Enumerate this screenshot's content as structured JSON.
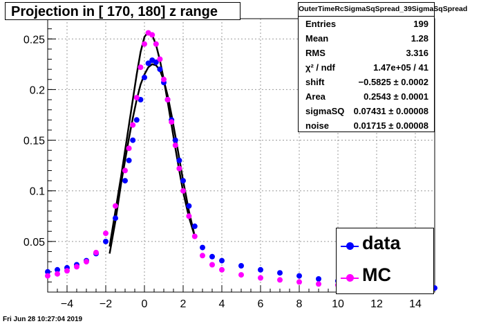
{
  "title": "Projection in [ 170, 180] z range",
  "stats": {
    "header": "OuterTimeRcSigmaSqSpread_39SigmaSqSpread",
    "rows": [
      {
        "label": "Entries",
        "value": "199"
      },
      {
        "label": "Mean",
        "value": "1.28"
      },
      {
        "label": "RMS",
        "value": "3.316"
      },
      {
        "label": "χ² / ndf",
        "value": "1.47e+05 / 41"
      },
      {
        "label": "shift",
        "value": "−0.5825 ± 0.0002"
      },
      {
        "label": "Area",
        "value": "0.2543 ± 0.0001"
      },
      {
        "label": "sigmaSQ",
        "value": "0.07431 ± 0.00008"
      },
      {
        "label": "noise",
        "value": "0.01715 ± 0.00008"
      }
    ]
  },
  "legend": [
    {
      "label": "data",
      "color": "#0000ff"
    },
    {
      "label": "MC",
      "color": "#ff00ff"
    }
  ],
  "footer": "Fri Jun 28 10:27:04 2019",
  "chart_data": {
    "type": "scatter",
    "xlim": [
      -5,
      15
    ],
    "ylim": [
      0,
      0.27
    ],
    "grid": true,
    "xticks": [
      -4,
      -2,
      0,
      2,
      4,
      6,
      8,
      10,
      12,
      14
    ],
    "yticks": [
      0.05,
      0.1,
      0.15,
      0.2,
      0.25
    ],
    "xticklabels": [
      "−4",
      "−2",
      "0",
      "2",
      "4",
      "6",
      "8",
      "10",
      "12",
      "14"
    ],
    "yticklabels": [
      "0.05",
      "0.1",
      "0.15",
      "0.2",
      "0.25"
    ],
    "series": [
      {
        "name": "data",
        "color": "#0000ff",
        "x": [
          -5.0,
          -4.5,
          -4.0,
          -3.5,
          -3.0,
          -2.5,
          -2.0,
          -1.5,
          -1.0,
          -0.8,
          -0.6,
          -0.4,
          -0.2,
          0.0,
          0.2,
          0.4,
          0.6,
          0.8,
          1.0,
          1.2,
          1.4,
          1.6,
          1.8,
          2.0,
          2.3,
          2.6,
          3.0,
          3.5,
          4.0,
          5.0,
          6.0,
          7.0,
          8.0,
          9.0,
          10.0,
          11.0,
          12.0,
          13.0,
          14.0,
          15.0
        ],
        "y": [
          0.02,
          0.022,
          0.024,
          0.027,
          0.031,
          0.038,
          0.05,
          0.073,
          0.11,
          0.13,
          0.15,
          0.17,
          0.19,
          0.212,
          0.226,
          0.229,
          0.227,
          0.22,
          0.207,
          0.19,
          0.17,
          0.15,
          0.13,
          0.11,
          0.085,
          0.065,
          0.044,
          0.035,
          0.031,
          0.026,
          0.022,
          0.019,
          0.016,
          0.013,
          0.011,
          0.009,
          0.007,
          0.006,
          0.005,
          0.004
        ]
      },
      {
        "name": "MC",
        "color": "#ff00ff",
        "x": [
          -5.0,
          -4.5,
          -4.0,
          -3.5,
          -3.0,
          -2.5,
          -2.0,
          -1.5,
          -1.0,
          -0.8,
          -0.6,
          -0.4,
          -0.2,
          0.0,
          0.2,
          0.4,
          0.6,
          0.8,
          1.0,
          1.2,
          1.4,
          1.6,
          1.8,
          2.0,
          2.3,
          2.6,
          3.0,
          3.5,
          4.0,
          5.0,
          6.0,
          7.0,
          8.0,
          9.0,
          10.0,
          10.5
        ],
        "y": [
          0.016,
          0.018,
          0.021,
          0.025,
          0.03,
          0.039,
          0.058,
          0.085,
          0.12,
          0.142,
          0.165,
          0.192,
          0.222,
          0.245,
          0.256,
          0.254,
          0.245,
          0.23,
          0.21,
          0.19,
          0.168,
          0.145,
          0.122,
          0.1,
          0.075,
          0.055,
          0.036,
          0.027,
          0.022,
          0.017,
          0.014,
          0.012,
          0.01,
          0.008,
          0.007,
          0.006
        ]
      }
    ],
    "fit_curves": [
      {
        "x": [
          -1.8,
          -1.5,
          -1.2,
          -1.0,
          -0.8,
          -0.6,
          -0.4,
          -0.2,
          0.0,
          0.2,
          0.4,
          0.6,
          0.8,
          1.0,
          1.2,
          1.4,
          1.6,
          1.8,
          2.0,
          2.3,
          2.6
        ],
        "y": [
          0.038,
          0.07,
          0.108,
          0.13,
          0.152,
          0.172,
          0.19,
          0.205,
          0.215,
          0.222,
          0.225,
          0.224,
          0.219,
          0.209,
          0.194,
          0.175,
          0.154,
          0.132,
          0.11,
          0.08,
          0.055
        ]
      },
      {
        "x": [
          -1.8,
          -1.5,
          -1.2,
          -1.0,
          -0.8,
          -0.6,
          -0.4,
          -0.2,
          0.0,
          0.2,
          0.4,
          0.6,
          0.8,
          1.0,
          1.2,
          1.4,
          1.6,
          1.8,
          2.0,
          2.3,
          2.6
        ],
        "y": [
          0.045,
          0.08,
          0.115,
          0.14,
          0.165,
          0.19,
          0.215,
          0.237,
          0.252,
          0.257,
          0.254,
          0.244,
          0.229,
          0.21,
          0.188,
          0.165,
          0.142,
          0.12,
          0.099,
          0.074,
          0.055
        ]
      }
    ]
  }
}
